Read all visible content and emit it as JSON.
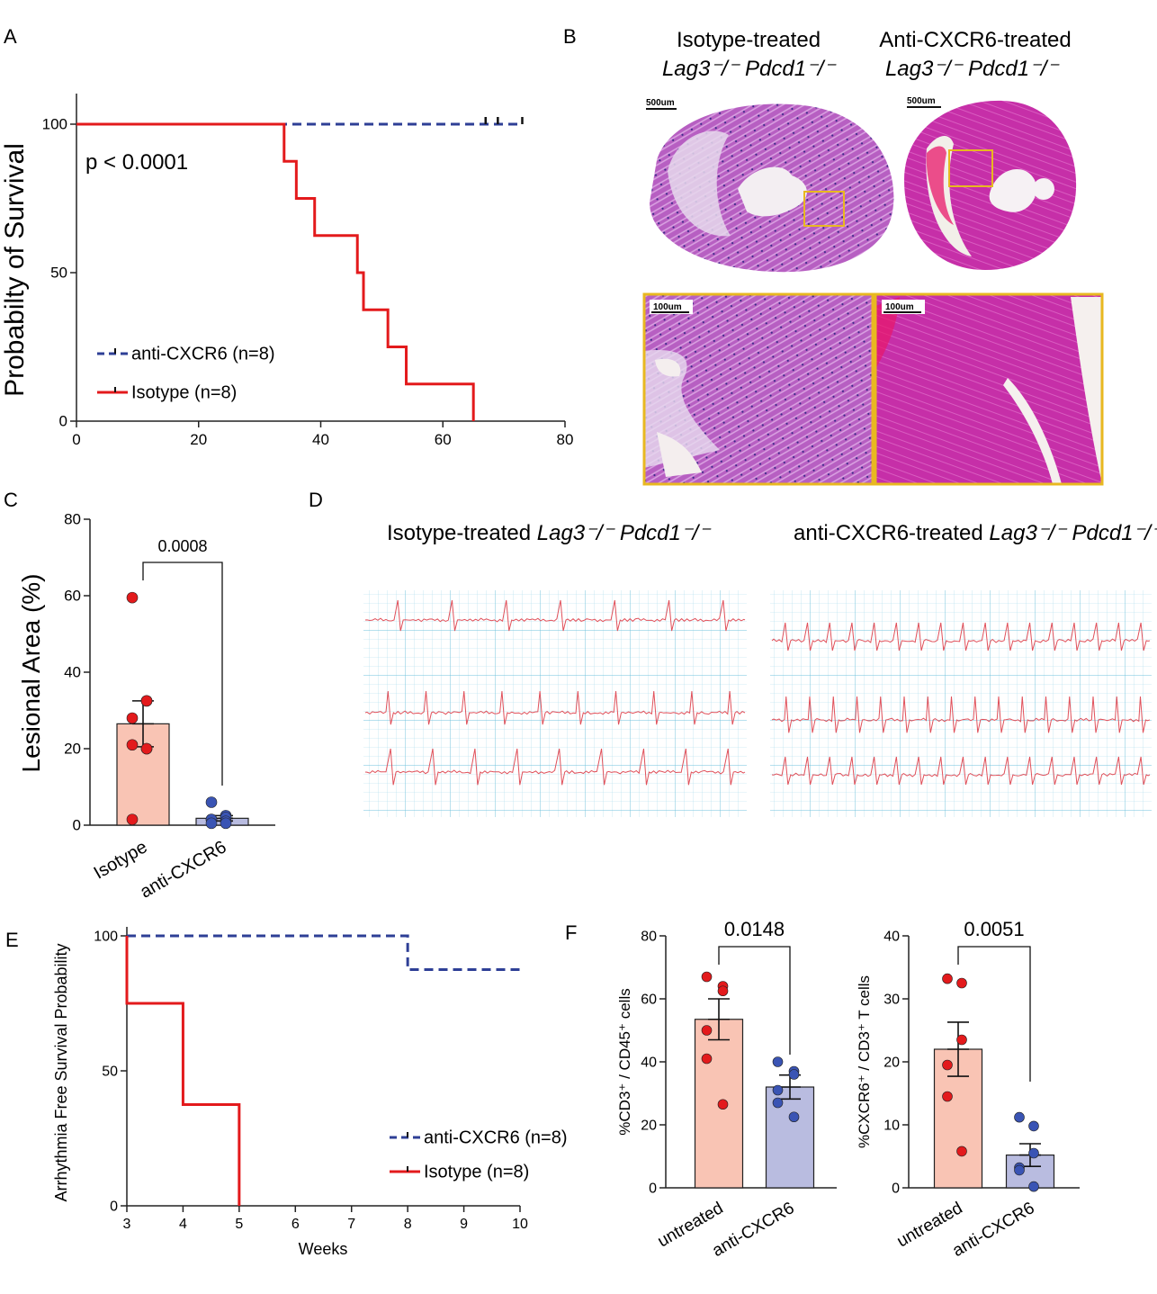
{
  "panel_labels": {
    "a": "A",
    "b": "B",
    "c": "C",
    "d": "D",
    "e": "E",
    "f": "F"
  },
  "colors": {
    "red": "#e31a1c",
    "blue": "#2e3f96",
    "bar_red": "#f9c4b4",
    "bar_blue": "#b9bce0",
    "he_pink": "#c03aa8",
    "he_purple": "#9a5db8",
    "ecg_grid": "#a8dcec",
    "ecg_trace": "#e0505a",
    "box": "#e8b820"
  },
  "chart_data": [
    {
      "id": "A",
      "type": "line",
      "ylabel": "Probabilty of Survival",
      "xlabel": "",
      "xlim": [
        0,
        80
      ],
      "ylim": [
        0,
        100
      ],
      "xticks": [
        "0",
        "20",
        "40",
        "60",
        "80"
      ],
      "yticks": [
        "0",
        "50",
        "100"
      ],
      "annotation": "p < 0.0001",
      "series": [
        {
          "name": "anti-CXCR6 (n=8)",
          "style": "dashed",
          "color": "#2e3f96",
          "x": [
            0,
            73
          ],
          "y": [
            100,
            100
          ],
          "censor_x": [
            67,
            69,
            73
          ]
        },
        {
          "name": "Isotype (n=8)",
          "style": "step",
          "color": "#e31a1c",
          "x": [
            0,
            34,
            36,
            39,
            46,
            47,
            51,
            54,
            65
          ],
          "y": [
            100,
            87.5,
            75,
            62.5,
            50,
            37.5,
            25,
            12.5,
            0
          ]
        }
      ],
      "legend": "bottom-left"
    },
    {
      "id": "C",
      "type": "bar",
      "ylabel": "Lesional Area (%)",
      "categories": [
        "Isotype",
        "anti-CXCR6"
      ],
      "ylim": [
        0,
        80
      ],
      "yticks": [
        "0",
        "20",
        "40",
        "60",
        "80"
      ],
      "means": [
        26.5,
        1.8
      ],
      "sem": [
        6.0,
        0.7
      ],
      "points": [
        [
          59.5,
          32.5,
          32.5,
          28,
          21,
          20,
          20,
          1.5
        ],
        [
          6,
          2.5,
          2,
          1.5,
          1.5,
          1,
          0.5,
          0.5
        ]
      ],
      "pvalue": "0.0008"
    },
    {
      "id": "E",
      "type": "line",
      "ylabel": "Arrhythmia Free Survival Probability",
      "xlabel": "Weeks",
      "xlim": [
        3,
        10
      ],
      "ylim": [
        0,
        100
      ],
      "xticks": [
        "3",
        "4",
        "5",
        "6",
        "7",
        "8",
        "9",
        "10"
      ],
      "yticks": [
        "0",
        "50",
        "100"
      ],
      "series": [
        {
          "name": "anti-CXCR6 (n=8)",
          "style": "dashed",
          "color": "#2e3f96",
          "x": [
            3,
            8,
            10
          ],
          "y": [
            100,
            87.5,
            87.5
          ]
        },
        {
          "name": "Isotype (n=8)",
          "style": "step",
          "color": "#e31a1c",
          "x": [
            3,
            4,
            5
          ],
          "y": [
            75,
            37.5,
            0
          ]
        }
      ],
      "legend": "bottom-right"
    },
    {
      "id": "F1",
      "type": "bar",
      "ylabel": "%CD3⁺ / CD45⁺ cells",
      "categories": [
        "untreated",
        "anti-CXCR6"
      ],
      "ylim": [
        0,
        80
      ],
      "yticks": [
        "0",
        "20",
        "40",
        "60",
        "80"
      ],
      "means": [
        53.5,
        32
      ],
      "sem": [
        6.5,
        3.8
      ],
      "points": [
        [
          67,
          64,
          62.5,
          50,
          41,
          26.5
        ],
        [
          40,
          37,
          36,
          31,
          27,
          22.5
        ]
      ],
      "pvalue": "0.0148"
    },
    {
      "id": "F2",
      "type": "bar",
      "ylabel": "%CXCR6⁺ / CD3⁺ T cells",
      "categories": [
        "untreated",
        "anti-CXCR6"
      ],
      "ylim": [
        0,
        40
      ],
      "yticks": [
        "0",
        "10",
        "20",
        "30",
        "40"
      ],
      "means": [
        22,
        5.2
      ],
      "sem": [
        4.3,
        1.8
      ],
      "points": [
        [
          33.2,
          32.5,
          23.5,
          19.5,
          14.5,
          5.8
        ],
        [
          11.2,
          9.8,
          5.5,
          3.2,
          2.8,
          0.2
        ]
      ],
      "pvalue": "0.0051"
    }
  ],
  "histology": {
    "left_title": "Isotype-treated",
    "left_genotype": "Lag3⁻/⁻ Pdcd1⁻/⁻",
    "right_title": "Anti-CXCR6-treated",
    "right_genotype": "Lag3⁻/⁻ Pdcd1⁻/⁻",
    "scale_low": "500um",
    "scale_high": "100um"
  },
  "ecg": {
    "left_title": "Isotype-treated",
    "right_title": "anti-CXCR6-treated",
    "genotype": "Lag3⁻/⁻ Pdcd1⁻/⁻"
  }
}
